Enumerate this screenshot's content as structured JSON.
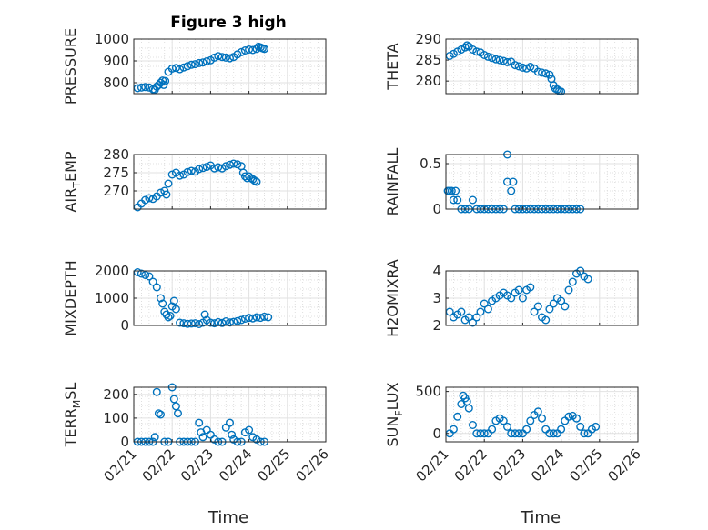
{
  "figure": {
    "title": "Figure 3 high"
  },
  "marker_color": "#0072bd",
  "x_axis": {
    "label": "Time",
    "ticks": [
      0,
      1,
      2,
      3,
      4,
      5
    ],
    "tick_labels": [
      "02/21",
      "02/22",
      "02/23",
      "02/24",
      "02/25",
      "02/26"
    ],
    "xlim": [
      0,
      5
    ]
  },
  "chart_data": [
    {
      "type": "scatter",
      "ylabel": "PRESSURE",
      "ylim": [
        750,
        1000
      ],
      "yticks": [
        800,
        900,
        1000
      ],
      "ytick_labels": [
        "800",
        "900",
        "1000"
      ],
      "title": "Figure 3 high",
      "points": [
        [
          0.1,
          775
        ],
        [
          0.2,
          778
        ],
        [
          0.3,
          780
        ],
        [
          0.4,
          778
        ],
        [
          0.5,
          770
        ],
        [
          0.55,
          768
        ],
        [
          0.6,
          782
        ],
        [
          0.65,
          790
        ],
        [
          0.7,
          800
        ],
        [
          0.75,
          810
        ],
        [
          0.78,
          790
        ],
        [
          0.82,
          808
        ],
        [
          0.9,
          850
        ],
        [
          1.0,
          865
        ],
        [
          1.1,
          868
        ],
        [
          1.2,
          862
        ],
        [
          1.3,
          870
        ],
        [
          1.4,
          876
        ],
        [
          1.5,
          882
        ],
        [
          1.6,
          885
        ],
        [
          1.7,
          890
        ],
        [
          1.8,
          893
        ],
        [
          1.9,
          898
        ],
        [
          2.0,
          903
        ],
        [
          2.1,
          915
        ],
        [
          2.2,
          922
        ],
        [
          2.3,
          918
        ],
        [
          2.4,
          915
        ],
        [
          2.5,
          912
        ],
        [
          2.6,
          918
        ],
        [
          2.7,
          930
        ],
        [
          2.8,
          940
        ],
        [
          2.9,
          948
        ],
        [
          3.0,
          952
        ],
        [
          3.1,
          950
        ],
        [
          3.2,
          955
        ],
        [
          3.25,
          965
        ],
        [
          3.3,
          962
        ],
        [
          3.35,
          958
        ],
        [
          3.4,
          955
        ]
      ]
    },
    {
      "type": "scatter",
      "ylabel": "THETA",
      "ylim": [
        277,
        290
      ],
      "yticks": [
        280,
        285,
        290
      ],
      "ytick_labels": [
        "280",
        "285",
        "290"
      ],
      "points": [
        [
          0.1,
          286
        ],
        [
          0.2,
          286.5
        ],
        [
          0.3,
          287
        ],
        [
          0.4,
          287.5
        ],
        [
          0.5,
          288
        ],
        [
          0.55,
          288.5
        ],
        [
          0.6,
          288.2
        ],
        [
          0.7,
          287.5
        ],
        [
          0.8,
          287
        ],
        [
          0.9,
          286.8
        ],
        [
          1.0,
          286.2
        ],
        [
          1.1,
          285.8
        ],
        [
          1.2,
          285.5
        ],
        [
          1.3,
          285.2
        ],
        [
          1.4,
          285
        ],
        [
          1.5,
          284.8
        ],
        [
          1.6,
          284.5
        ],
        [
          1.7,
          284.6
        ],
        [
          1.8,
          283.8
        ],
        [
          1.9,
          283.5
        ],
        [
          2.0,
          283.2
        ],
        [
          2.1,
          283
        ],
        [
          2.2,
          283.4
        ],
        [
          2.3,
          283
        ],
        [
          2.4,
          282.2
        ],
        [
          2.5,
          282
        ],
        [
          2.6,
          281.8
        ],
        [
          2.7,
          281.5
        ],
        [
          2.75,
          280.5
        ],
        [
          2.8,
          279
        ],
        [
          2.85,
          278.2
        ],
        [
          2.9,
          278
        ],
        [
          2.95,
          277.6
        ],
        [
          3.0,
          277.5
        ]
      ]
    },
    {
      "type": "scatter",
      "ylabel": "AIR_TEMP",
      "ylim": [
        265,
        280
      ],
      "yticks": [
        270,
        275,
        280
      ],
      "ytick_labels": [
        "270",
        "275",
        "280"
      ],
      "points": [
        [
          0.1,
          265.5
        ],
        [
          0.2,
          266.5
        ],
        [
          0.3,
          267.5
        ],
        [
          0.4,
          268
        ],
        [
          0.5,
          267.8
        ],
        [
          0.6,
          268.5
        ],
        [
          0.7,
          269.5
        ],
        [
          0.8,
          270
        ],
        [
          0.85,
          269
        ],
        [
          0.9,
          272
        ],
        [
          1.0,
          274.5
        ],
        [
          1.1,
          275
        ],
        [
          1.2,
          274.2
        ],
        [
          1.3,
          274.5
        ],
        [
          1.4,
          275.2
        ],
        [
          1.5,
          275.5
        ],
        [
          1.6,
          275.3
        ],
        [
          1.7,
          276
        ],
        [
          1.8,
          276.3
        ],
        [
          1.9,
          276.6
        ],
        [
          2.0,
          277
        ],
        [
          2.1,
          276.2
        ],
        [
          2.2,
          276.5
        ],
        [
          2.3,
          276.2
        ],
        [
          2.4,
          276.8
        ],
        [
          2.5,
          277.2
        ],
        [
          2.6,
          277.5
        ],
        [
          2.7,
          277.3
        ],
        [
          2.8,
          276.8
        ],
        [
          2.85,
          275
        ],
        [
          2.9,
          274
        ],
        [
          2.95,
          273.5
        ],
        [
          3.0,
          274
        ],
        [
          3.05,
          273.5
        ],
        [
          3.1,
          273.2
        ],
        [
          3.15,
          272.8
        ],
        [
          3.2,
          272.5
        ]
      ]
    },
    {
      "type": "scatter",
      "ylabel": "RAINFALL",
      "ylim": [
        0,
        0.6
      ],
      "yticks": [
        0,
        0.5
      ],
      "ytick_labels": [
        "0",
        "0.5"
      ],
      "points": [
        [
          0.05,
          0.2
        ],
        [
          0.1,
          0.2
        ],
        [
          0.15,
          0.2
        ],
        [
          0.2,
          0.1
        ],
        [
          0.25,
          0.2
        ],
        [
          0.3,
          0.1
        ],
        [
          0.4,
          0.0
        ],
        [
          0.5,
          0.0
        ],
        [
          0.6,
          0.0
        ],
        [
          0.7,
          0.1
        ],
        [
          0.8,
          0.0
        ],
        [
          0.9,
          0.0
        ],
        [
          1.0,
          0.0
        ],
        [
          1.1,
          0.0
        ],
        [
          1.2,
          0.0
        ],
        [
          1.3,
          0.0
        ],
        [
          1.4,
          0.0
        ],
        [
          1.5,
          0.0
        ],
        [
          1.6,
          0.6
        ],
        [
          1.6,
          0.3
        ],
        [
          1.7,
          0.2
        ],
        [
          1.75,
          0.3
        ],
        [
          1.8,
          0.0
        ],
        [
          1.9,
          0.0
        ],
        [
          2.0,
          0.0
        ],
        [
          2.1,
          0.0
        ],
        [
          2.2,
          0.0
        ],
        [
          2.3,
          0.0
        ],
        [
          2.4,
          0.0
        ],
        [
          2.5,
          0.0
        ],
        [
          2.6,
          0.0
        ],
        [
          2.7,
          0.0
        ],
        [
          2.8,
          0.0
        ],
        [
          2.9,
          0.0
        ],
        [
          3.0,
          0.0
        ],
        [
          3.1,
          0.0
        ],
        [
          3.2,
          0.0
        ],
        [
          3.3,
          0.0
        ],
        [
          3.4,
          0.0
        ],
        [
          3.5,
          0.0
        ]
      ]
    },
    {
      "type": "scatter",
      "ylabel": "MIXDEPTH",
      "ylim": [
        0,
        2000
      ],
      "yticks": [
        0,
        1000,
        2000
      ],
      "ytick_labels": [
        "0",
        "1000",
        "2000"
      ],
      "points": [
        [
          0.1,
          1950
        ],
        [
          0.2,
          1900
        ],
        [
          0.3,
          1850
        ],
        [
          0.4,
          1800
        ],
        [
          0.5,
          1600
        ],
        [
          0.6,
          1400
        ],
        [
          0.7,
          1000
        ],
        [
          0.75,
          800
        ],
        [
          0.8,
          500
        ],
        [
          0.85,
          400
        ],
        [
          0.9,
          300
        ],
        [
          0.95,
          350
        ],
        [
          1.0,
          700
        ],
        [
          1.05,
          900
        ],
        [
          1.1,
          600
        ],
        [
          1.2,
          100
        ],
        [
          1.3,
          80
        ],
        [
          1.4,
          60
        ],
        [
          1.5,
          70
        ],
        [
          1.6,
          80
        ],
        [
          1.7,
          50
        ],
        [
          1.8,
          100
        ],
        [
          1.85,
          400
        ],
        [
          1.9,
          200
        ],
        [
          2.0,
          100
        ],
        [
          2.1,
          80
        ],
        [
          2.2,
          120
        ],
        [
          2.3,
          90
        ],
        [
          2.4,
          150
        ],
        [
          2.5,
          110
        ],
        [
          2.6,
          130
        ],
        [
          2.7,
          160
        ],
        [
          2.8,
          200
        ],
        [
          2.9,
          250
        ],
        [
          3.0,
          280
        ],
        [
          3.1,
          260
        ],
        [
          3.2,
          300
        ],
        [
          3.3,
          280
        ],
        [
          3.4,
          320
        ],
        [
          3.5,
          300
        ]
      ]
    },
    {
      "type": "scatter",
      "ylabel": "H2OMIXRA",
      "ylim": [
        2,
        4
      ],
      "yticks": [
        2,
        3,
        4
      ],
      "ytick_labels": [
        "2",
        "3",
        "4"
      ],
      "points": [
        [
          0.1,
          2.5
        ],
        [
          0.2,
          2.3
        ],
        [
          0.3,
          2.4
        ],
        [
          0.4,
          2.5
        ],
        [
          0.5,
          2.2
        ],
        [
          0.6,
          2.3
        ],
        [
          0.7,
          2.1
        ],
        [
          0.8,
          2.3
        ],
        [
          0.9,
          2.5
        ],
        [
          1.0,
          2.8
        ],
        [
          1.1,
          2.6
        ],
        [
          1.2,
          2.9
        ],
        [
          1.3,
          3.0
        ],
        [
          1.4,
          3.1
        ],
        [
          1.5,
          3.2
        ],
        [
          1.6,
          3.1
        ],
        [
          1.7,
          3.0
        ],
        [
          1.8,
          3.2
        ],
        [
          1.9,
          3.3
        ],
        [
          2.0,
          3.0
        ],
        [
          2.1,
          3.3
        ],
        [
          2.2,
          3.4
        ],
        [
          2.3,
          2.5
        ],
        [
          2.4,
          2.7
        ],
        [
          2.5,
          2.3
        ],
        [
          2.6,
          2.2
        ],
        [
          2.7,
          2.6
        ],
        [
          2.8,
          2.8
        ],
        [
          2.9,
          3.0
        ],
        [
          3.0,
          2.9
        ],
        [
          3.1,
          2.7
        ],
        [
          3.2,
          3.3
        ],
        [
          3.3,
          3.6
        ],
        [
          3.4,
          3.9
        ],
        [
          3.5,
          4.0
        ],
        [
          3.6,
          3.8
        ],
        [
          3.7,
          3.7
        ]
      ]
    },
    {
      "type": "scatter",
      "ylabel": "TERR_MSL",
      "ylim": [
        0,
        230
      ],
      "yticks": [
        0,
        100,
        200
      ],
      "ytick_labels": [
        "0",
        "100",
        "200"
      ],
      "points": [
        [
          0.1,
          0
        ],
        [
          0.2,
          0
        ],
        [
          0.3,
          0
        ],
        [
          0.4,
          0
        ],
        [
          0.5,
          0
        ],
        [
          0.55,
          20
        ],
        [
          0.6,
          210
        ],
        [
          0.65,
          120
        ],
        [
          0.7,
          115
        ],
        [
          0.8,
          0
        ],
        [
          0.9,
          0
        ],
        [
          1.0,
          230
        ],
        [
          1.05,
          180
        ],
        [
          1.1,
          150
        ],
        [
          1.15,
          120
        ],
        [
          1.2,
          0
        ],
        [
          1.3,
          0
        ],
        [
          1.4,
          0
        ],
        [
          1.5,
          0
        ],
        [
          1.6,
          0
        ],
        [
          1.7,
          80
        ],
        [
          1.75,
          40
        ],
        [
          1.8,
          20
        ],
        [
          1.9,
          50
        ],
        [
          2.0,
          30
        ],
        [
          2.1,
          10
        ],
        [
          2.2,
          0
        ],
        [
          2.3,
          0
        ],
        [
          2.4,
          60
        ],
        [
          2.5,
          80
        ],
        [
          2.55,
          30
        ],
        [
          2.6,
          10
        ],
        [
          2.7,
          0
        ],
        [
          2.8,
          0
        ],
        [
          2.9,
          40
        ],
        [
          3.0,
          50
        ],
        [
          3.1,
          20
        ],
        [
          3.2,
          10
        ],
        [
          3.3,
          0
        ],
        [
          3.4,
          0
        ]
      ]
    },
    {
      "type": "scatter",
      "ylabel": "SUN_FLUX",
      "ylim": [
        -100,
        550
      ],
      "yticks": [
        0,
        500
      ],
      "ytick_labels": [
        "0",
        "500"
      ],
      "points": [
        [
          0.1,
          0
        ],
        [
          0.2,
          50
        ],
        [
          0.3,
          200
        ],
        [
          0.4,
          350
        ],
        [
          0.45,
          450
        ],
        [
          0.5,
          420
        ],
        [
          0.55,
          380
        ],
        [
          0.6,
          300
        ],
        [
          0.7,
          100
        ],
        [
          0.8,
          0
        ],
        [
          0.9,
          0
        ],
        [
          1.0,
          0
        ],
        [
          1.1,
          0
        ],
        [
          1.2,
          50
        ],
        [
          1.3,
          150
        ],
        [
          1.4,
          180
        ],
        [
          1.5,
          150
        ],
        [
          1.6,
          80
        ],
        [
          1.7,
          0
        ],
        [
          1.8,
          0
        ],
        [
          1.9,
          0
        ],
        [
          2.0,
          0
        ],
        [
          2.1,
          50
        ],
        [
          2.2,
          150
        ],
        [
          2.3,
          220
        ],
        [
          2.4,
          260
        ],
        [
          2.5,
          180
        ],
        [
          2.6,
          50
        ],
        [
          2.7,
          0
        ],
        [
          2.8,
          0
        ],
        [
          2.9,
          0
        ],
        [
          3.0,
          50
        ],
        [
          3.1,
          150
        ],
        [
          3.2,
          200
        ],
        [
          3.3,
          210
        ],
        [
          3.4,
          180
        ],
        [
          3.5,
          80
        ],
        [
          3.6,
          0
        ],
        [
          3.7,
          0
        ],
        [
          3.8,
          50
        ],
        [
          3.9,
          80
        ]
      ]
    }
  ]
}
